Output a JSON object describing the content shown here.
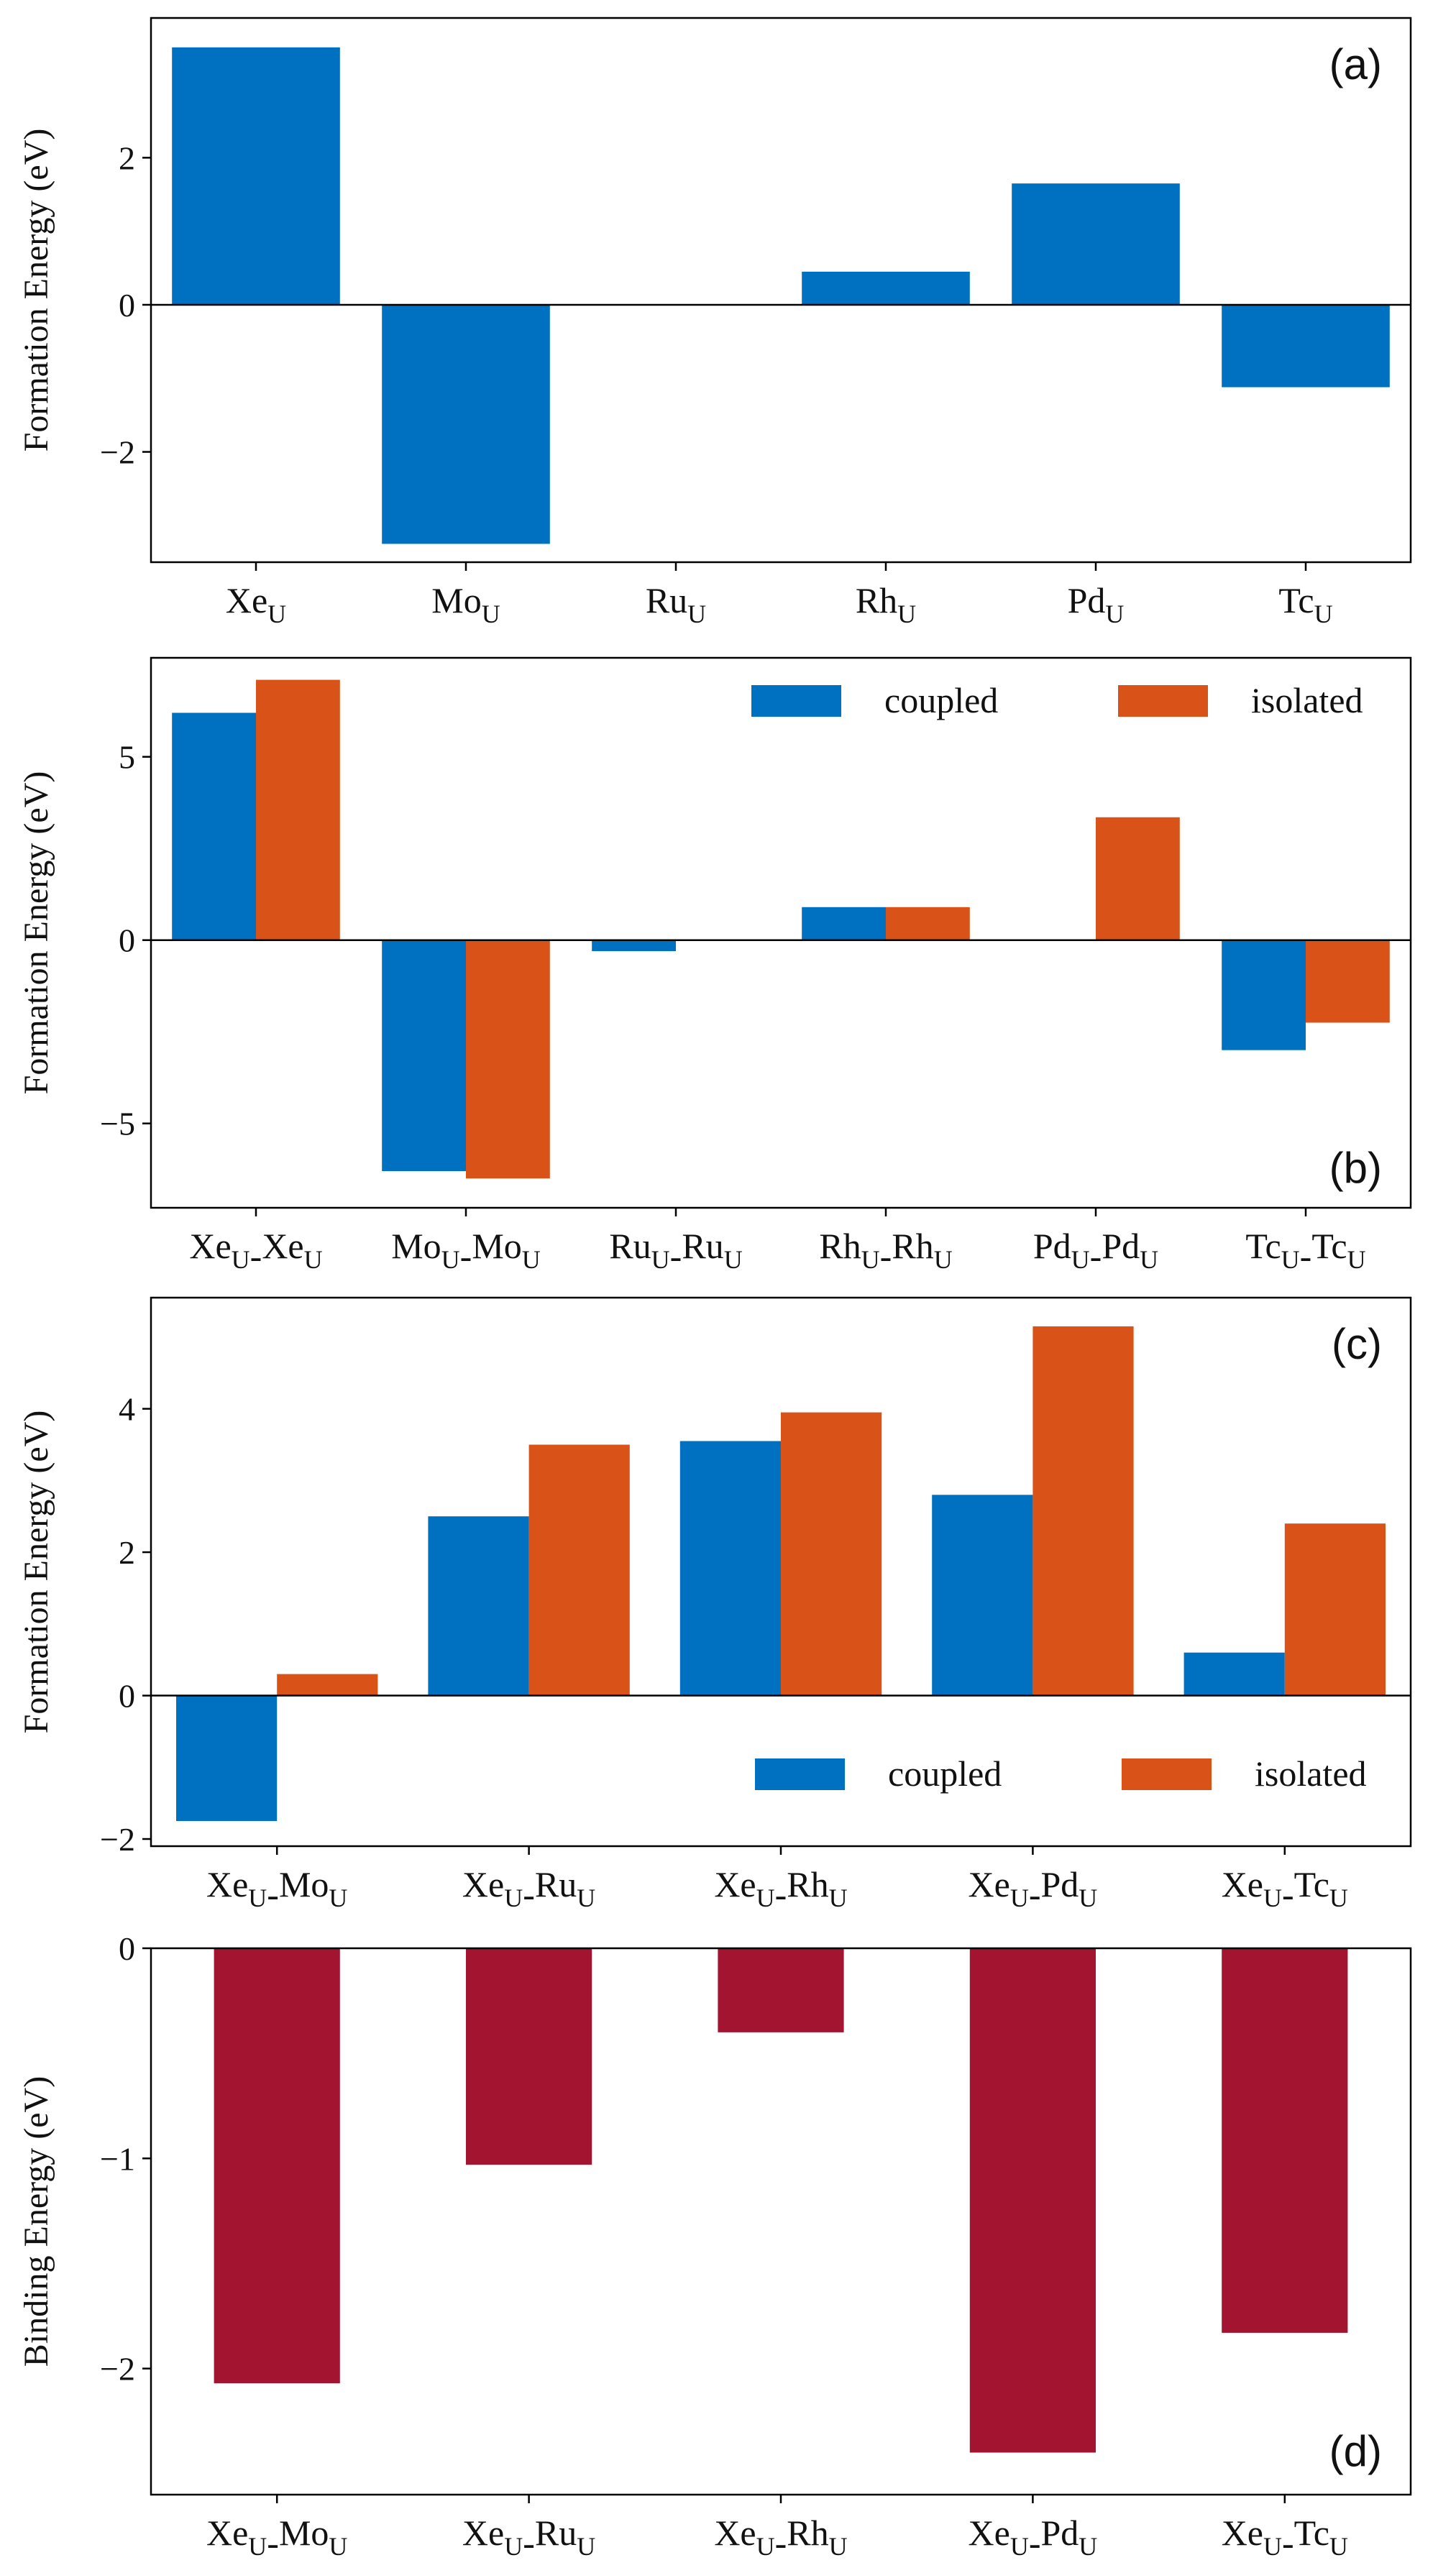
{
  "colors": {
    "coupled": "#0070c0",
    "isolated": "#d95319",
    "binding": "#a31431"
  },
  "chart_data": [
    {
      "type": "bar",
      "panel": "(a)",
      "ylabel": "Formation Energy (eV)",
      "ylim": [
        -3.5,
        3.9
      ],
      "yticks": [
        {
          "value": -2,
          "label": "−2"
        },
        {
          "value": 0,
          "label": "0"
        },
        {
          "value": 2,
          "label": "2"
        }
      ],
      "categories": [
        {
          "base": "Xe",
          "sub": "U"
        },
        {
          "base": "Mo",
          "sub": "U"
        },
        {
          "base": "Ru",
          "sub": "U"
        },
        {
          "base": "Rh",
          "sub": "U"
        },
        {
          "base": "Pd",
          "sub": "U"
        },
        {
          "base": "Tc",
          "sub": "U"
        }
      ],
      "series": [
        {
          "name": "",
          "color_key": "coupled",
          "values": [
            3.5,
            -3.25,
            0.0,
            0.45,
            1.65,
            -1.12
          ]
        }
      ],
      "legend": null,
      "label_position": "top-right"
    },
    {
      "type": "bar",
      "panel": "(b)",
      "ylabel": "Formation Energy (eV)",
      "ylim": [
        -7.3,
        7.7
      ],
      "yticks": [
        {
          "value": -5,
          "label": "−5"
        },
        {
          "value": 0,
          "label": "0"
        },
        {
          "value": 5,
          "label": "5"
        }
      ],
      "categories": [
        [
          {
            "base": "Xe",
            "sub": "U"
          },
          {
            "base": "Xe",
            "sub": "U"
          }
        ],
        [
          {
            "base": "Mo",
            "sub": "U"
          },
          {
            "base": "Mo",
            "sub": "U"
          }
        ],
        [
          {
            "base": "Ru",
            "sub": "U"
          },
          {
            "base": "Ru",
            "sub": "U"
          }
        ],
        [
          {
            "base": "Rh",
            "sub": "U"
          },
          {
            "base": "Rh",
            "sub": "U"
          }
        ],
        [
          {
            "base": "Pd",
            "sub": "U"
          },
          {
            "base": "Pd",
            "sub": "U"
          }
        ],
        [
          {
            "base": "Tc",
            "sub": "U"
          },
          {
            "base": "Tc",
            "sub": "U"
          }
        ]
      ],
      "series": [
        {
          "name": "coupled",
          "color_key": "coupled",
          "values": [
            6.2,
            -6.3,
            -0.3,
            0.9,
            0.0,
            -3.0
          ]
        },
        {
          "name": "isolated",
          "color_key": "isolated",
          "values": [
            7.1,
            -6.5,
            0.0,
            0.9,
            3.35,
            -2.25
          ]
        }
      ],
      "legend": "top-right",
      "label_position": "bottom-right"
    },
    {
      "type": "bar",
      "panel": "(c)",
      "ylabel": "Formation Energy (eV)",
      "ylim": [
        -2.1,
        5.55
      ],
      "yticks": [
        {
          "value": -2,
          "label": "−2"
        },
        {
          "value": 0,
          "label": "0"
        },
        {
          "value": 2,
          "label": "2"
        },
        {
          "value": 4,
          "label": "4"
        }
      ],
      "categories": [
        [
          {
            "base": "Xe",
            "sub": "U"
          },
          {
            "base": "Mo",
            "sub": "U"
          }
        ],
        [
          {
            "base": "Xe",
            "sub": "U"
          },
          {
            "base": "Ru",
            "sub": "U"
          }
        ],
        [
          {
            "base": "Xe",
            "sub": "U"
          },
          {
            "base": "Rh",
            "sub": "U"
          }
        ],
        [
          {
            "base": "Xe",
            "sub": "U"
          },
          {
            "base": "Pd",
            "sub": "U"
          }
        ],
        [
          {
            "base": "Xe",
            "sub": "U"
          },
          {
            "base": "Tc",
            "sub": "U"
          }
        ]
      ],
      "series": [
        {
          "name": "coupled",
          "color_key": "coupled",
          "values": [
            -1.75,
            2.5,
            3.55,
            2.8,
            0.6
          ]
        },
        {
          "name": "isolated",
          "color_key": "isolated",
          "values": [
            0.3,
            3.5,
            3.95,
            5.15,
            2.4
          ]
        }
      ],
      "legend": "bottom-right",
      "label_position": "top-right"
    },
    {
      "type": "bar",
      "panel": "(d)",
      "ylabel": "Binding Energy (eV)",
      "ylim": [
        -2.6,
        0.0
      ],
      "yticks": [
        {
          "value": -2,
          "label": "−2"
        },
        {
          "value": -1,
          "label": "−1"
        },
        {
          "value": 0,
          "label": "0"
        }
      ],
      "categories": [
        [
          {
            "base": "Xe",
            "sub": "U"
          },
          {
            "base": "Mo",
            "sub": "U"
          }
        ],
        [
          {
            "base": "Xe",
            "sub": "U"
          },
          {
            "base": "Ru",
            "sub": "U"
          }
        ],
        [
          {
            "base": "Xe",
            "sub": "U"
          },
          {
            "base": "Rh",
            "sub": "U"
          }
        ],
        [
          {
            "base": "Xe",
            "sub": "U"
          },
          {
            "base": "Pd",
            "sub": "U"
          }
        ],
        [
          {
            "base": "Xe",
            "sub": "U"
          },
          {
            "base": "Tc",
            "sub": "U"
          }
        ]
      ],
      "series": [
        {
          "name": "",
          "color_key": "binding",
          "values": [
            -2.07,
            -1.03,
            -0.4,
            -2.4,
            -1.83
          ]
        }
      ],
      "legend": null,
      "label_position": "bottom-right"
    }
  ]
}
